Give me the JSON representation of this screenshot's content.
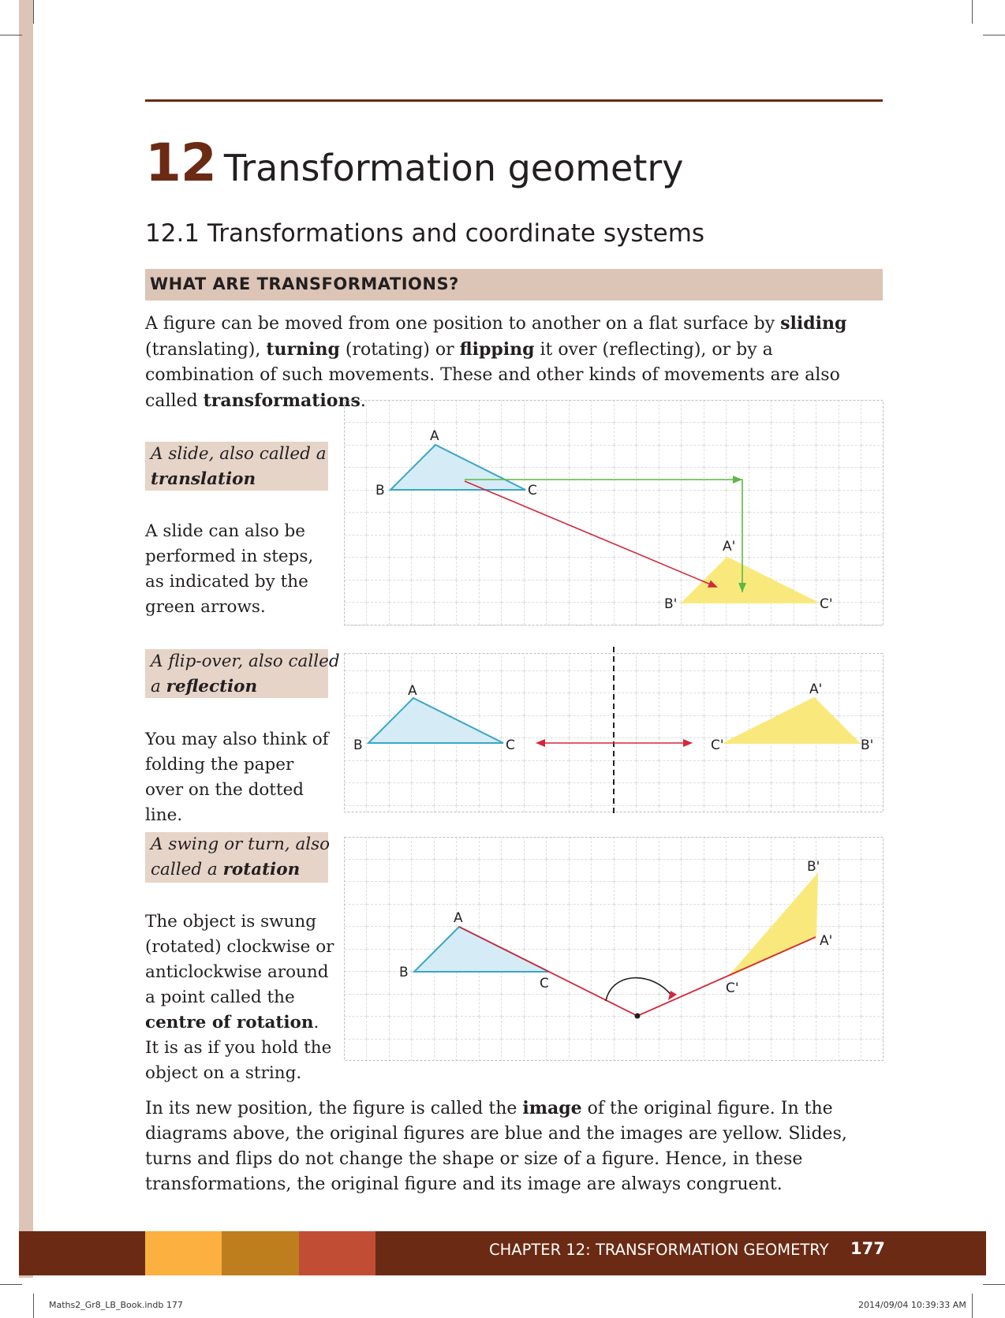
{
  "chapter": {
    "number": "12",
    "title": "Transformation geometry"
  },
  "section": {
    "heading": "12.1  Transformations and coordinate systems",
    "box_heading": "WHAT ARE TRANSFORMATIONS?"
  },
  "intro": {
    "t1": "A figure can be moved from one position to another on a flat surface by ",
    "b1": "sliding",
    "t2": " (translating), ",
    "b2": "turning",
    "t3": " (rotating) or ",
    "b3": "flipping",
    "t4": " it over (reflecting), or by a combination of such movements. These and other kinds of movements are also called ",
    "b4": "transformations",
    "t5": "."
  },
  "slide": {
    "label_line1": "A slide, also called a",
    "label_bold": "translation",
    "desc": "A slide can also be performed in steps, as indicated by the green arrows.",
    "points": {
      "A": "A",
      "B": "B",
      "C": "C",
      "A2": "A'",
      "B2": "B'",
      "C2": "C'"
    }
  },
  "flip": {
    "label_line1": "A flip-over, also called",
    "label_prefix": "a ",
    "label_bold": "reflection",
    "desc": "You may also think of folding the paper over on the dotted line.",
    "points": {
      "A": "A",
      "B": "B",
      "C": "C",
      "A2": "A'",
      "B2": "B'",
      "C2": "C'"
    }
  },
  "turn": {
    "label_line1": "A swing or turn, also",
    "label_prefix": "called a ",
    "label_bold": "rotation",
    "desc_t1": "The object is swung (rotated) clockwise or anticlockwise around a point called the ",
    "desc_b1": "centre of rotation",
    "desc_t2": ". It is as if you hold the object on a string.",
    "points": {
      "A": "A",
      "B": "B",
      "C": "C",
      "A2": "A'",
      "B2": "B'",
      "C2": "C'"
    }
  },
  "conclusion": {
    "t1": "In its new position, the figure is called the ",
    "b1": "image",
    "t2": " of the original figure. In the diagrams above, the original figures are blue and the images are yellow. Slides, turns and flips do not change the shape or size of a figure. Hence, in these transformations, the original figure and its image are always congruent."
  },
  "footer": {
    "chapter_text": "CHAPTER 12: TRANSFORMATION GEOMETRY",
    "page_number": "177",
    "slug_left": "Maths2_Gr8_LB_Book.indb   177",
    "slug_right": "2014/09/04   10:39:33 AM"
  },
  "colors": {
    "brand_brown": "#6b2a14",
    "heading_box": "#dcc4b6",
    "original_fill": "#d5ecf6",
    "original_stroke": "#3aa6c8",
    "image_fill": "#f9e97c",
    "arrow_red": "#d2283a",
    "arrow_green": "#5ab947"
  }
}
